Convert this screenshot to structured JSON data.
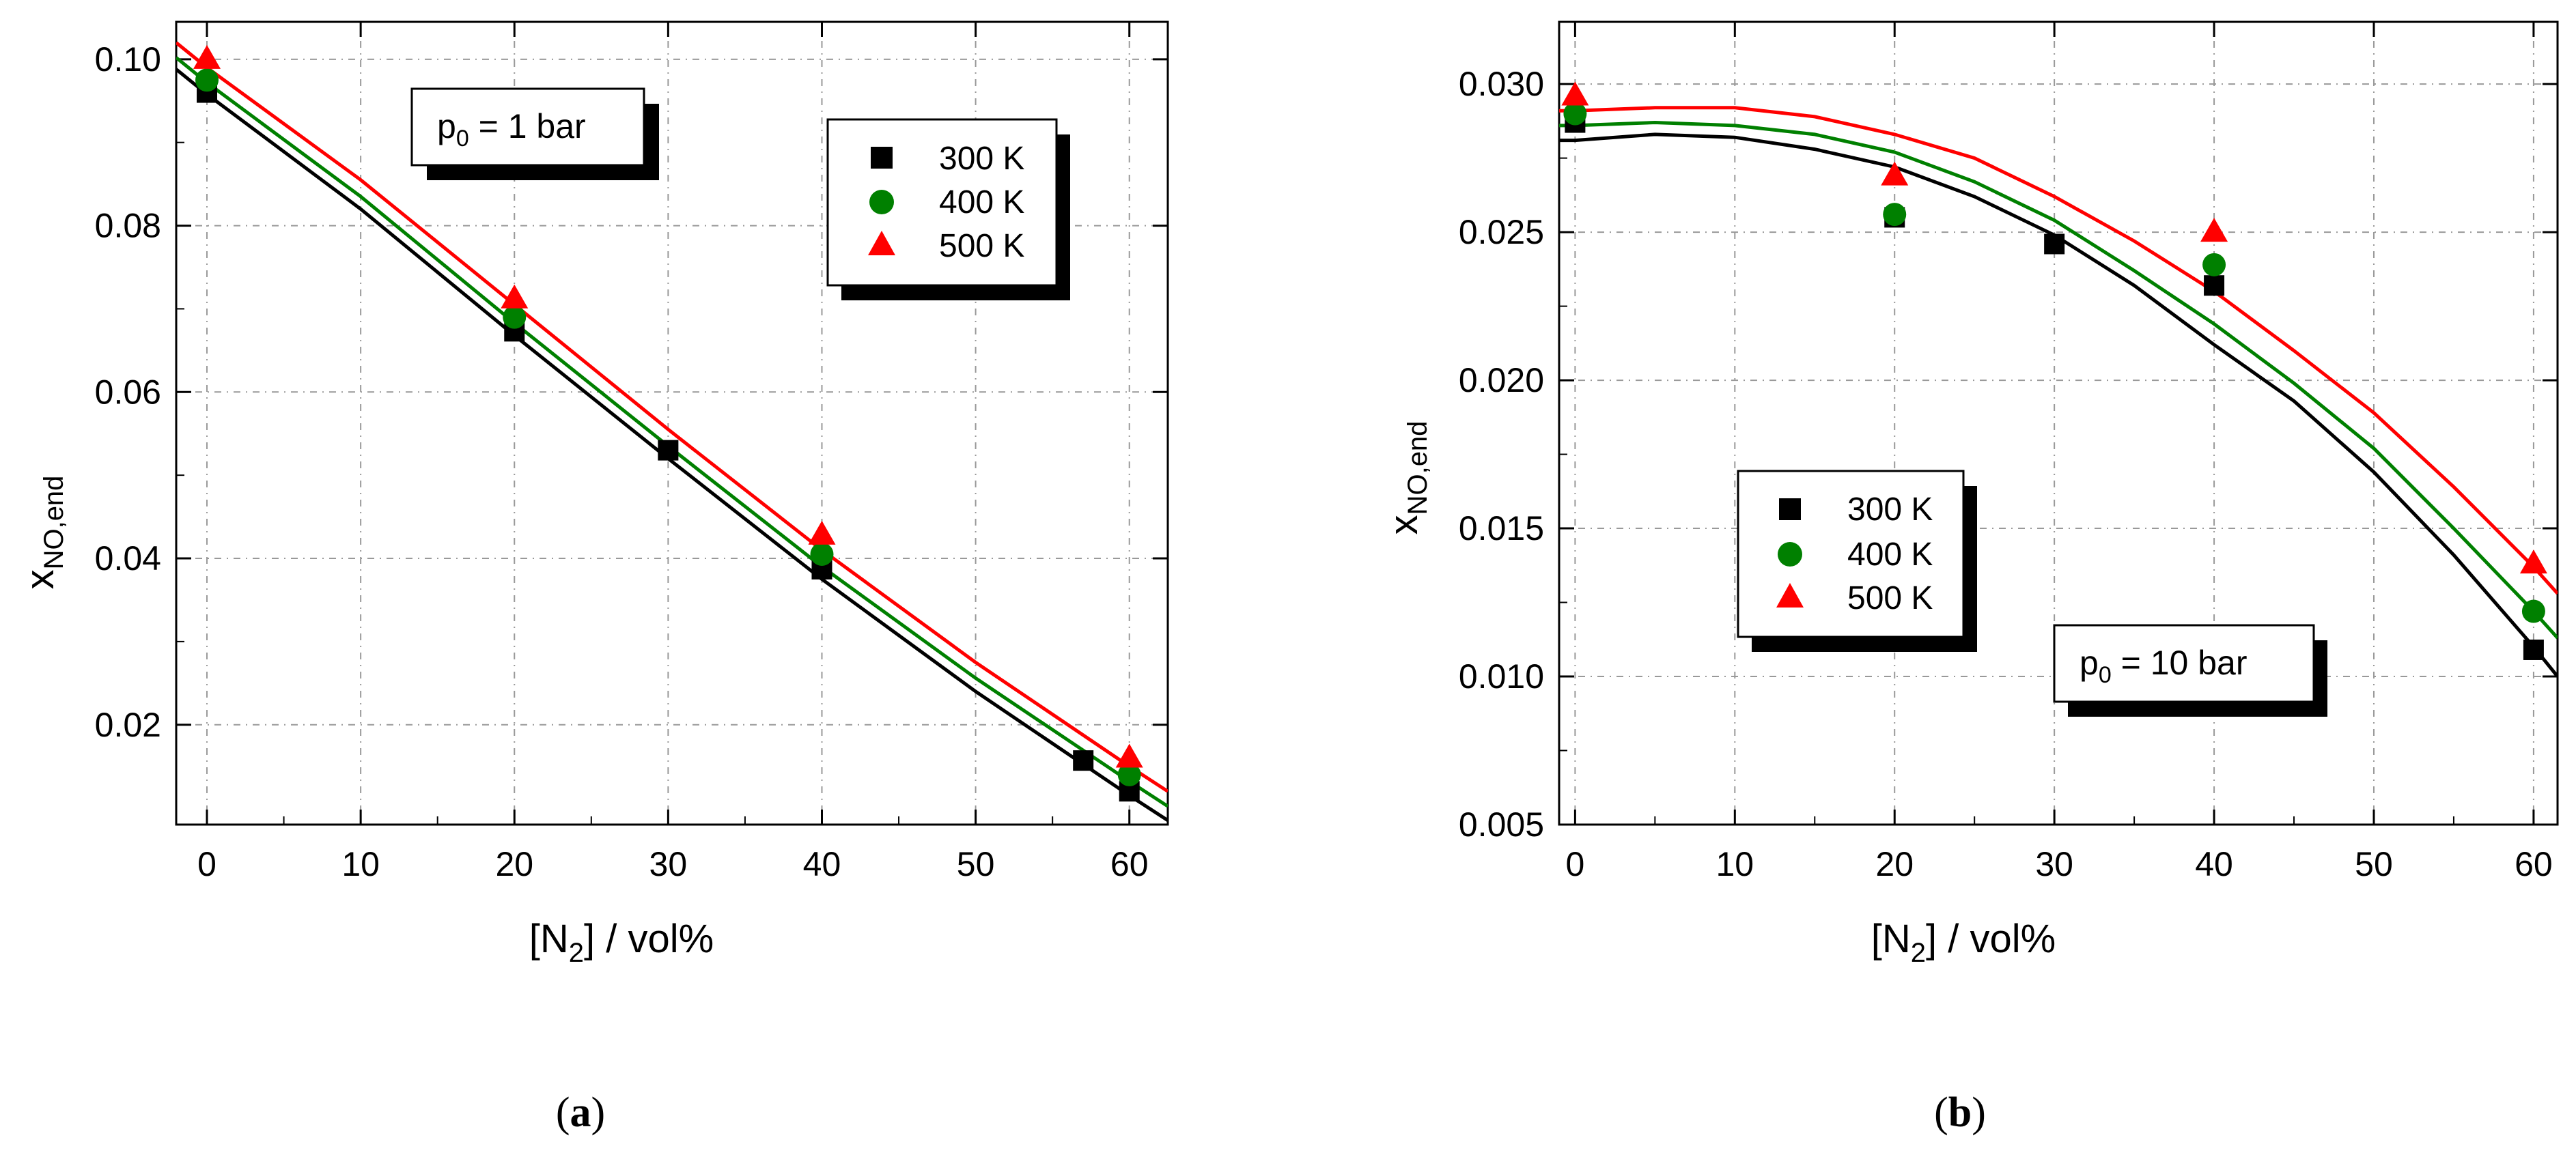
{
  "chart_data": [
    {
      "panel": "a",
      "type": "scatter",
      "caption_open": "(",
      "caption_letter": "a",
      "caption_close": ")",
      "xlabel": {
        "pre": "[N",
        "sub": "2",
        "post": "] / vol%"
      },
      "ylabel": {
        "main": "x",
        "sub": "NO,end"
      },
      "xlim": [
        -2,
        62.5
      ],
      "ylim": [
        0.008,
        0.1045
      ],
      "xticks": [
        0,
        10,
        20,
        30,
        40,
        50,
        60
      ],
      "xtick_labels": [
        "0",
        "10",
        "20",
        "30",
        "40",
        "50",
        "60"
      ],
      "yticks": [
        0.02,
        0.04,
        0.06,
        0.08,
        0.1
      ],
      "ytick_labels": [
        "0.02",
        "0.04",
        "0.06",
        "0.08",
        "0.10"
      ],
      "annotation": {
        "pre": "p",
        "sub": "0",
        "post": " = 1 bar"
      },
      "legend_position": "top-right",
      "legend": [
        {
          "label": "300 K",
          "marker": "square",
          "color": "#000000"
        },
        {
          "label": "400 K",
          "marker": "circle",
          "color": "#008000"
        },
        {
          "label": "500 K",
          "marker": "triangle",
          "color": "#ff0000"
        }
      ],
      "series": [
        {
          "name": "300 K",
          "color": "#000000",
          "marker": "square",
          "points": [
            [
              0,
              0.096
            ],
            [
              20,
              0.0673
            ],
            [
              30,
              0.053
            ],
            [
              40,
              0.0387
            ],
            [
              57,
              0.0157
            ],
            [
              60,
              0.012
            ]
          ],
          "curve": [
            [
              -2,
              0.0988
            ],
            [
              0,
              0.0958
            ],
            [
              10,
              0.082
            ],
            [
              20,
              0.0668
            ],
            [
              30,
              0.052
            ],
            [
              40,
              0.0375
            ],
            [
              50,
              0.024
            ],
            [
              60,
              0.0115
            ],
            [
              62.5,
              0.0085
            ]
          ]
        },
        {
          "name": "400 K",
          "color": "#008000",
          "marker": "circle",
          "points": [
            [
              0,
              0.0975
            ],
            [
              20,
              0.069
            ],
            [
              40,
              0.0405
            ],
            [
              60,
              0.014
            ]
          ],
          "curve": [
            [
              -2,
              0.1002
            ],
            [
              0,
              0.0972
            ],
            [
              10,
              0.0835
            ],
            [
              20,
              0.0683
            ],
            [
              30,
              0.0535
            ],
            [
              40,
              0.039
            ],
            [
              50,
              0.0256
            ],
            [
              60,
              0.0132
            ],
            [
              62.5,
              0.0102
            ]
          ]
        },
        {
          "name": "500 K",
          "color": "#ff0000",
          "marker": "triangle",
          "points": [
            [
              0,
              0.1
            ],
            [
              20,
              0.0712
            ],
            [
              40,
              0.0428
            ],
            [
              60,
              0.016
            ]
          ],
          "curve": [
            [
              -2,
              0.102
            ],
            [
              0,
              0.099
            ],
            [
              10,
              0.0855
            ],
            [
              20,
              0.0705
            ],
            [
              30,
              0.0555
            ],
            [
              40,
              0.041
            ],
            [
              50,
              0.0275
            ],
            [
              60,
              0.015
            ],
            [
              62.5,
              0.012
            ]
          ]
        }
      ]
    },
    {
      "panel": "b",
      "type": "scatter",
      "caption_open": "(",
      "caption_letter": "b",
      "caption_close": ")",
      "xlabel": {
        "pre": "[N",
        "sub": "2",
        "post": "] / vol%"
      },
      "ylabel": {
        "main": "x",
        "sub": "NO,end"
      },
      "xlim": [
        -1,
        61.5
      ],
      "ylim": [
        0.005,
        0.0321
      ],
      "xticks": [
        0,
        10,
        20,
        30,
        40,
        50,
        60
      ],
      "xtick_labels": [
        "0",
        "10",
        "20",
        "30",
        "40",
        "50",
        "60"
      ],
      "yticks": [
        0.005,
        0.01,
        0.015,
        0.02,
        0.025,
        0.03
      ],
      "ytick_labels": [
        "0.005",
        "0.010",
        "0.015",
        "0.020",
        "0.025",
        "0.030"
      ],
      "annotation": {
        "pre": "p",
        "sub": "0",
        "post": " = 10 bar"
      },
      "legend_position": "center-left",
      "legend": [
        {
          "label": "300 K",
          "marker": "square",
          "color": "#000000"
        },
        {
          "label": "400 K",
          "marker": "circle",
          "color": "#008000"
        },
        {
          "label": "500 K",
          "marker": "triangle",
          "color": "#ff0000"
        }
      ],
      "series": [
        {
          "name": "300 K",
          "color": "#000000",
          "marker": "square",
          "points": [
            [
              0,
              0.0287
            ],
            [
              20,
              0.0255
            ],
            [
              30,
              0.0246
            ],
            [
              40,
              0.0232
            ],
            [
              60,
              0.0109
            ]
          ],
          "curve": [
            [
              -1,
              0.0281
            ],
            [
              0,
              0.0281
            ],
            [
              5,
              0.0283
            ],
            [
              10,
              0.0282
            ],
            [
              15,
              0.0278
            ],
            [
              20,
              0.0272
            ],
            [
              25,
              0.0262
            ],
            [
              30,
              0.0249
            ],
            [
              35,
              0.0232
            ],
            [
              40,
              0.0212
            ],
            [
              45,
              0.0193
            ],
            [
              50,
              0.0169
            ],
            [
              55,
              0.0141
            ],
            [
              60,
              0.011
            ],
            [
              61.5,
              0.01
            ]
          ]
        },
        {
          "name": "400 K",
          "color": "#008000",
          "marker": "circle",
          "points": [
            [
              0,
              0.029
            ],
            [
              20,
              0.0256
            ],
            [
              40,
              0.0239
            ],
            [
              60,
              0.0122
            ]
          ],
          "curve": [
            [
              -1,
              0.0286
            ],
            [
              0,
              0.0286
            ],
            [
              5,
              0.0287
            ],
            [
              10,
              0.0286
            ],
            [
              15,
              0.0283
            ],
            [
              20,
              0.0277
            ],
            [
              25,
              0.0267
            ],
            [
              30,
              0.0254
            ],
            [
              35,
              0.0237
            ],
            [
              40,
              0.0219
            ],
            [
              45,
              0.0199
            ],
            [
              50,
              0.0177
            ],
            [
              55,
              0.015
            ],
            [
              60,
              0.0122
            ],
            [
              61.5,
              0.0113
            ]
          ]
        },
        {
          "name": "500 K",
          "color": "#ff0000",
          "marker": "triangle",
          "points": [
            [
              0,
              0.0296
            ],
            [
              20,
              0.0269
            ],
            [
              40,
              0.025
            ],
            [
              60,
              0.0138
            ]
          ],
          "curve": [
            [
              -1,
              0.0291
            ],
            [
              0,
              0.0291
            ],
            [
              5,
              0.0292
            ],
            [
              10,
              0.0292
            ],
            [
              15,
              0.0289
            ],
            [
              20,
              0.0283
            ],
            [
              25,
              0.0275
            ],
            [
              30,
              0.0262
            ],
            [
              35,
              0.0247
            ],
            [
              40,
              0.023
            ],
            [
              45,
              0.021
            ],
            [
              50,
              0.0189
            ],
            [
              55,
              0.0164
            ],
            [
              60,
              0.0137
            ],
            [
              61.5,
              0.0128
            ]
          ]
        }
      ]
    }
  ]
}
